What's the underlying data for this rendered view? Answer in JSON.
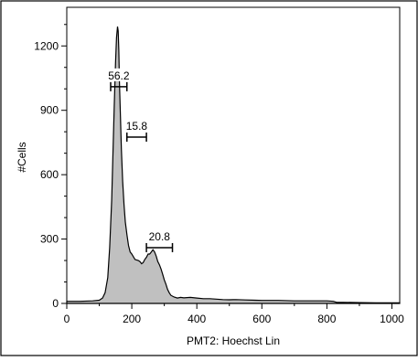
{
  "chart_data": {
    "type": "area",
    "title": "",
    "xlabel": "PMT2: Hoechst Lin",
    "ylabel": "#Cells",
    "xlim": [
      0,
      1024
    ],
    "ylim": [
      0,
      1380
    ],
    "xticks": [
      0,
      200,
      400,
      600,
      800,
      1000
    ],
    "yticks": [
      0,
      300,
      600,
      900,
      1200
    ],
    "xtick_labels": [
      "0",
      "200",
      "400",
      "600",
      "800",
      "1000"
    ],
    "ytick_labels": [
      "0",
      "300",
      "600",
      "900",
      "1200"
    ],
    "grid": false,
    "fill_color": "#c0c0c0",
    "line_color": "#000000",
    "series": [
      {
        "x": [
          0,
          40,
          80,
          100,
          110,
          118,
          126,
          132,
          138,
          142,
          146,
          150,
          153,
          156,
          158,
          160,
          162,
          165,
          168,
          172,
          176,
          180,
          185,
          190,
          195,
          200,
          210,
          220,
          225,
          230,
          235,
          240,
          245,
          250,
          255,
          260,
          265,
          270,
          275,
          280,
          285,
          290,
          295,
          300,
          305,
          310,
          315,
          320,
          330,
          340,
          350,
          360,
          380,
          400,
          420,
          440,
          460,
          480,
          500,
          520,
          550,
          580,
          600,
          650,
          700,
          750,
          800,
          820,
          830,
          850,
          900,
          950,
          1000,
          1024
        ],
        "y": [
          10,
          10,
          12,
          15,
          25,
          50,
          120,
          260,
          480,
          700,
          920,
          1120,
          1240,
          1290,
          1270,
          1180,
          1030,
          870,
          720,
          570,
          460,
          380,
          320,
          270,
          240,
          230,
          205,
          200,
          195,
          185,
          190,
          205,
          215,
          230,
          230,
          240,
          250,
          240,
          220,
          195,
          180,
          160,
          135,
          110,
          90,
          65,
          50,
          38,
          30,
          25,
          28,
          26,
          28,
          25,
          22,
          22,
          20,
          18,
          17,
          18,
          16,
          15,
          14,
          14,
          12,
          12,
          12,
          10,
          5,
          5,
          4,
          3,
          3,
          3
        ]
      }
    ],
    "gates": [
      {
        "label": "56.2",
        "x_start": 135,
        "x_end": 185,
        "y": 1010
      },
      {
        "label": "15.8",
        "x_start": 185,
        "x_end": 245,
        "y": 775
      },
      {
        "label": "20.8",
        "x_start": 245,
        "x_end": 325,
        "y": 260
      }
    ]
  }
}
